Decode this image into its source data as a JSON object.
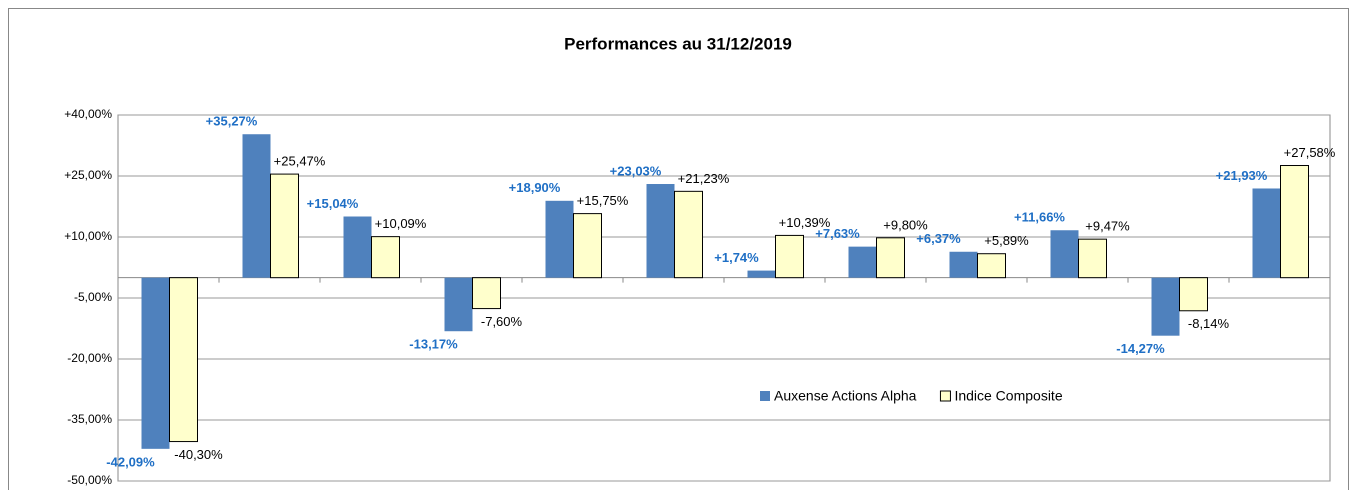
{
  "chart_data": {
    "type": "bar",
    "title": "Performances au 31/12/2019",
    "categories": [
      null,
      null,
      null,
      null,
      null,
      null,
      null,
      null,
      null,
      null,
      null,
      null
    ],
    "series": [
      {
        "name": "Auxense Actions Alpha",
        "color": "#4f81bd",
        "label_color": "#1f6fc5",
        "values": [
          -42.09,
          35.27,
          15.04,
          -13.17,
          18.9,
          23.03,
          1.74,
          7.63,
          6.37,
          11.66,
          -14.27,
          21.93
        ],
        "value_labels": [
          "-42,09%",
          "+35,27%",
          "+15,04%",
          "-13,17%",
          "+18,90%",
          "+23,03%",
          "+1,74%",
          "+7,63%",
          "+6,37%",
          "+11,66%",
          "-14,27%",
          "+21,93%"
        ]
      },
      {
        "name": "Indice Composite",
        "color": "#ffffcc",
        "label_color": "#000000",
        "values": [
          -40.3,
          25.47,
          10.09,
          -7.6,
          15.75,
          21.23,
          10.39,
          9.8,
          5.89,
          9.47,
          -8.14,
          27.58
        ],
        "value_labels": [
          "-40,30%",
          "+25,47%",
          "+10,09%",
          "-7,60%",
          "+15,75%",
          "+21,23%",
          "+10,39%",
          "+9,80%",
          "+5,89%",
          "+9,47%",
          "-8,14%",
          "+27,58%"
        ]
      }
    ],
    "ylim": [
      -50,
      40
    ],
    "yticks": [
      {
        "value": -50,
        "label": "-50,00%"
      },
      {
        "value": -35,
        "label": "-35,00%"
      },
      {
        "value": -20,
        "label": "-20,00%"
      },
      {
        "value": -5,
        "label": "-5,00%"
      },
      {
        "value": 10,
        "label": "+10,00%"
      },
      {
        "value": 25,
        "label": "+25,00%"
      },
      {
        "value": 40,
        "label": "+40,00%"
      }
    ],
    "grid": true
  }
}
